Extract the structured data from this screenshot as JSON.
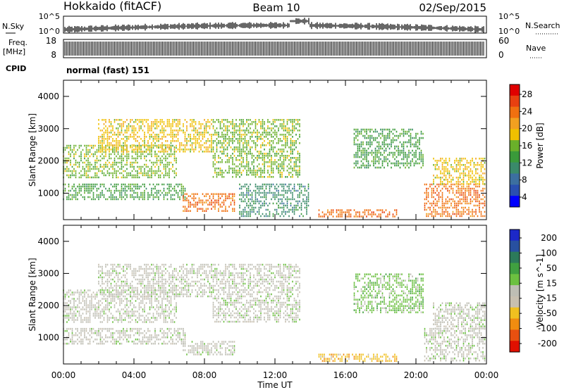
{
  "header": {
    "site": "Hokkaido (fitACF)",
    "beam": "Beam 10",
    "date": "02/Sep/2015"
  },
  "noise_panel": {
    "left_label": "N.Sky",
    "left_ticks": [
      "10^5",
      "10^0"
    ],
    "right_label": "N.Search",
    "right_ticks": [
      "10^5",
      "10^0"
    ]
  },
  "freq_panel": {
    "left_label_1": "Freq.",
    "left_label_2": "[MHz]",
    "left_ticks": [
      "18",
      "8"
    ],
    "right_label": "Nave",
    "right_ticks": [
      "60",
      "0"
    ]
  },
  "cpid_panel": {
    "label": "CPID",
    "value": "normal (fast) 151"
  },
  "colors": {
    "power_scale": [
      "#0000ff",
      "#2a4fb0",
      "#3c6fa0",
      "#3a8a6a",
      "#3a9a3a",
      "#6ab02a",
      "#f0c000",
      "#f2a020",
      "#f07010",
      "#e84010",
      "#e00000"
    ],
    "velocity_scale": [
      "#1c28c8",
      "#2850a0",
      "#2c7a5a",
      "#40a040",
      "#6cc040",
      "#bebeb4",
      "#c8c0b0",
      "#f0c020",
      "#f08c10",
      "#e85010",
      "#e01000"
    ]
  },
  "chart_data": [
    {
      "type": "heatmap",
      "title": "Power",
      "xlabel": "",
      "ylabel": "Slant Range [km]",
      "xlim": [
        "00:00",
        "24:00"
      ],
      "ylim": [
        180,
        4500
      ],
      "y_ticks": [
        "1000",
        "2000",
        "3000",
        "4000"
      ],
      "colorbar": {
        "label": "Power [dB]",
        "ticks": [
          "4",
          "8",
          "12",
          "16",
          "20",
          "24",
          "28"
        ],
        "range": [
          0,
          30
        ]
      },
      "regions": [
        {
          "t0": 0.0,
          "t1": 7.0,
          "r0": 800,
          "r1": 1300,
          "level": 13
        },
        {
          "t0": 0.0,
          "t1": 6.5,
          "r0": 1500,
          "r1": 2500,
          "level": 16
        },
        {
          "t0": 2.0,
          "t1": 8.5,
          "r0": 2300,
          "r1": 3300,
          "level": 17
        },
        {
          "t0": 6.8,
          "t1": 9.8,
          "r0": 450,
          "r1": 1000,
          "level": 22
        },
        {
          "t0": 8.5,
          "t1": 13.5,
          "r0": 1500,
          "r1": 3300,
          "level": 15
        },
        {
          "t0": 10.0,
          "t1": 14.0,
          "r0": 300,
          "r1": 1300,
          "level": 9
        },
        {
          "t0": 14.5,
          "t1": 19.0,
          "r0": 300,
          "r1": 500,
          "level": 24
        },
        {
          "t0": 16.5,
          "t1": 20.5,
          "r0": 1800,
          "r1": 3000,
          "level": 12
        },
        {
          "t0": 20.5,
          "t1": 24.0,
          "r0": 300,
          "r1": 1300,
          "level": 22
        },
        {
          "t0": 21.0,
          "t1": 24.0,
          "r0": 1300,
          "r1": 2100,
          "level": 17
        }
      ]
    },
    {
      "type": "heatmap",
      "title": "Velocity",
      "xlabel": "Time UT",
      "ylabel": "Slant Range [km]",
      "xlim": [
        "00:00",
        "24:00"
      ],
      "x_ticks": [
        "00:00",
        "04:00",
        "08:00",
        "12:00",
        "16:00",
        "20:00",
        "00:00"
      ],
      "ylim": [
        180,
        4500
      ],
      "y_ticks": [
        "1000",
        "2000",
        "3000",
        "4000"
      ],
      "colorbar": {
        "label": "Velocity [m s^-1]",
        "ticks": [
          "200",
          "100",
          "50",
          "15",
          "-15",
          "-50",
          "-100",
          "-200"
        ],
        "range": [
          -250,
          250
        ]
      },
      "regions": [
        {
          "t0": 0.0,
          "t1": 7.0,
          "r0": 800,
          "r1": 1300,
          "level": 0
        },
        {
          "t0": 0.0,
          "t1": 6.5,
          "r0": 1500,
          "r1": 2500,
          "level": 0
        },
        {
          "t0": 2.0,
          "t1": 8.5,
          "r0": 2300,
          "r1": 3300,
          "level": 5
        },
        {
          "t0": 6.8,
          "t1": 9.8,
          "r0": 500,
          "r1": 900,
          "level": 0
        },
        {
          "t0": 8.5,
          "t1": 13.5,
          "r0": 1500,
          "r1": 3300,
          "level": 8
        },
        {
          "t0": 14.5,
          "t1": 19.0,
          "r0": 300,
          "r1": 500,
          "level": -70
        },
        {
          "t0": 16.5,
          "t1": 20.5,
          "r0": 1800,
          "r1": 3000,
          "level": 30
        },
        {
          "t0": 20.5,
          "t1": 24.0,
          "r0": 300,
          "r1": 1300,
          "level": 0
        },
        {
          "t0": 21.0,
          "t1": 24.0,
          "r0": 1300,
          "r1": 2100,
          "level": 0
        }
      ]
    }
  ]
}
